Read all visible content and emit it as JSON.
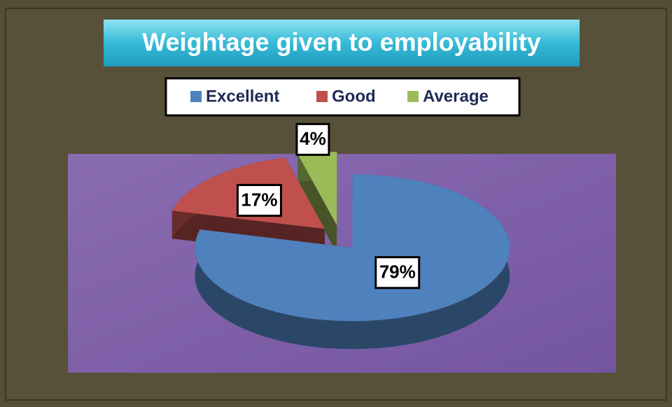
{
  "chart_data": {
    "type": "pie",
    "title": "Weightage given to employability",
    "categories": [
      "Excellent",
      "Good",
      "Average"
    ],
    "values": [
      79,
      17,
      4
    ],
    "value_labels": [
      "79%",
      "17%",
      "4%"
    ],
    "colors": [
      "#4f81bd",
      "#c0504d",
      "#9bbb59"
    ],
    "legend": "top"
  }
}
